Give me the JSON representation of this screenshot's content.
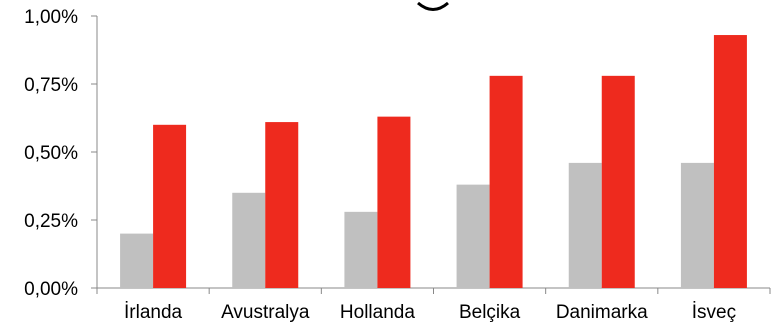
{
  "chart_data": {
    "type": "bar",
    "title": "",
    "xlabel": "",
    "ylabel": "",
    "categories": [
      "İrlanda",
      "Avustralya",
      "Hollanda",
      "Belçika",
      "Danimarka",
      "İsveç"
    ],
    "series": [
      {
        "values": [
          0.2,
          0.35,
          0.28,
          0.38,
          0.46,
          0.46
        ],
        "color": "#c0c0c0"
      },
      {
        "values": [
          0.6,
          0.61,
          0.63,
          0.78,
          0.78,
          0.93
        ],
        "color": "#ee2a1e"
      }
    ],
    "ylim": [
      0,
      1.0
    ],
    "yticks": [
      0,
      0.25,
      0.5,
      0.75,
      1.0
    ],
    "ytick_labels": [
      "0,00%",
      "0,25%",
      "0,50%",
      "0,75%",
      "1,00%"
    ],
    "grid": false,
    "legend": false
  }
}
